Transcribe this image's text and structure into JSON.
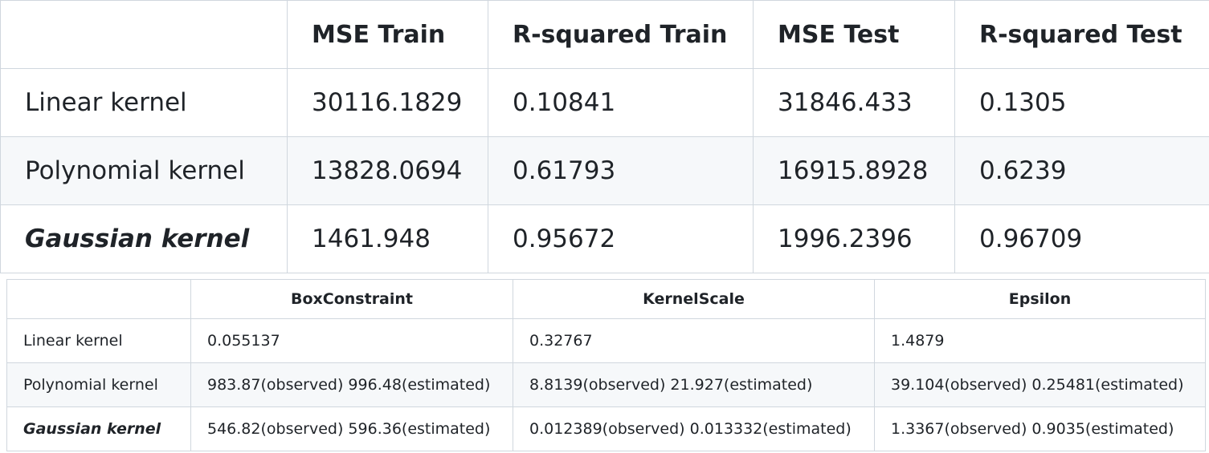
{
  "table1": {
    "header": [
      "",
      "MSE Train",
      "R-squared Train",
      "MSE Test",
      "R-squared Test"
    ],
    "rows": [
      [
        "Linear kernel",
        "30116.1829",
        "0.10841",
        "31846.433",
        "0.1305"
      ],
      [
        "Polynomial kernel",
        "13828.0694",
        "0.61793",
        "16915.8928",
        "0.6239"
      ],
      [
        "Gaussian kernel",
        "1461.948",
        "0.95672",
        "1996.2396",
        "0.96709"
      ]
    ]
  },
  "table2": {
    "header": [
      "",
      "BoxConstraint",
      "KernelScale",
      "Epsilon"
    ],
    "rows": [
      [
        "Linear kernel",
        "0.055137",
        "0.32767",
        "1.4879"
      ],
      [
        "Polynomial kernel",
        "983.87(observed) 996.48(estimated)",
        "8.8139(observed) 21.927(estimated)",
        "39.104(observed) 0.25481(estimated)"
      ],
      [
        "Gaussian kernel",
        "546.82(observed) 596.36(estimated)",
        "0.012389(observed) 0.013332(estimated)",
        "1.3367(observed) 0.9035(estimated)"
      ]
    ]
  }
}
